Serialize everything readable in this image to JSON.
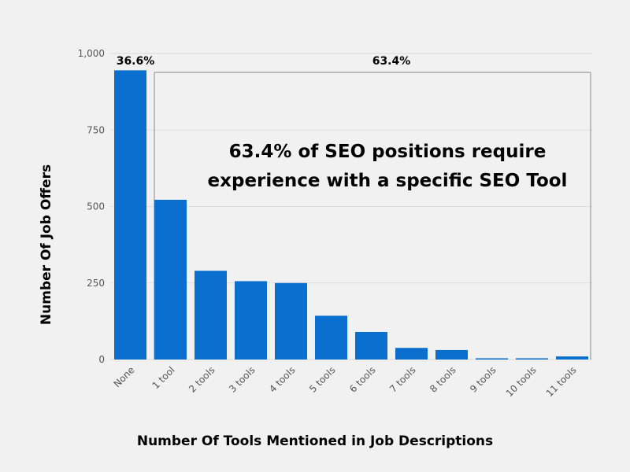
{
  "chart_data": {
    "type": "bar",
    "categories": [
      "None",
      "1 tool",
      "2 tools",
      "3 tools",
      "4 tools",
      "5 tools",
      "6 tools",
      "7 tools",
      "8 tools",
      "9 tools",
      "10 tools",
      "11 tools"
    ],
    "values": [
      945,
      522,
      290,
      256,
      250,
      143,
      90,
      38,
      31,
      4,
      4,
      10
    ],
    "xlabel": "Number Of Tools Mentioned in Job Descriptions",
    "ylabel": "Number Of Job Offers",
    "ylim": [
      0,
      1000
    ],
    "yticks": [
      0,
      250,
      500,
      750,
      1000
    ],
    "ytick_labels": [
      "0",
      "250",
      "500",
      "750",
      "1,000"
    ],
    "grid": true,
    "bar_color": "#0a6fce",
    "annotations": {
      "left_pct": "36.6%",
      "right_pct": "63.4%",
      "callout_line1": "63.4% of SEO positions require",
      "callout_line2": "experience with a specific SEO Tool"
    }
  }
}
